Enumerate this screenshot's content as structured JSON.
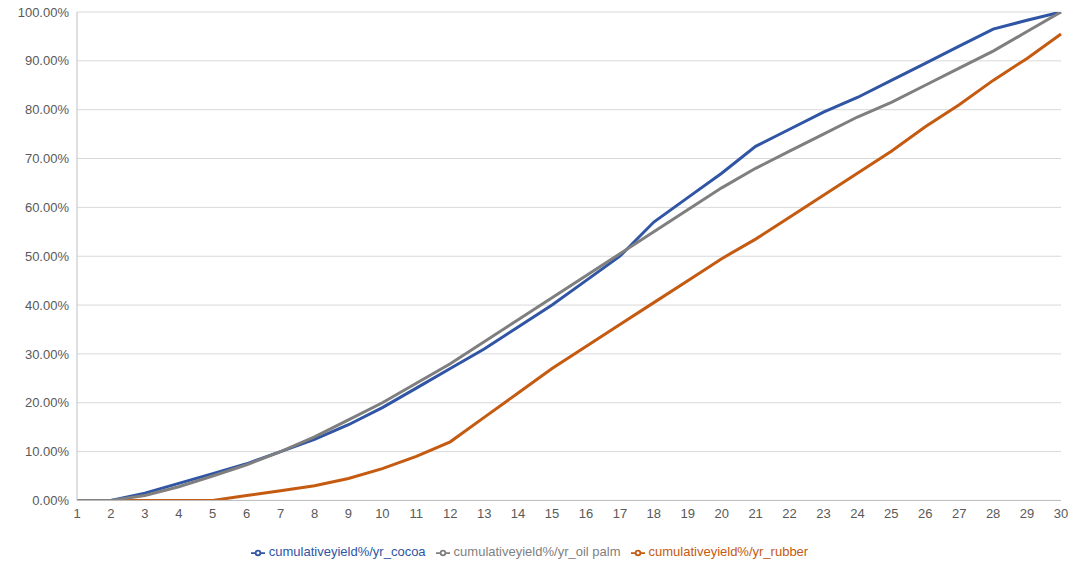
{
  "chart_data": {
    "type": "line",
    "categories": [
      "1",
      "2",
      "3",
      "4",
      "5",
      "6",
      "7",
      "8",
      "9",
      "10",
      "11",
      "12",
      "13",
      "14",
      "15",
      "16",
      "17",
      "18",
      "19",
      "20",
      "21",
      "22",
      "23",
      "24",
      "25",
      "26",
      "27",
      "28",
      "29",
      "30"
    ],
    "series": [
      {
        "name": "cumulativeyield%/yr_cocoa",
        "color": "#2f55a4",
        "values": [
          0,
          0,
          1.5,
          3.5,
          5.5,
          7.5,
          10,
          12.5,
          15.5,
          19,
          23,
          27,
          31,
          35.5,
          40,
          45,
          50,
          57,
          62,
          67,
          72.5,
          76,
          79.5,
          82.5,
          86,
          89.5,
          93,
          96.5,
          98.3,
          100
        ]
      },
      {
        "name": "cumulativeyield%/yr_rubber",
        "color": "#c55a11",
        "values": [
          0,
          0,
          0,
          0,
          0,
          1,
          2,
          3,
          4.5,
          6.5,
          9,
          12,
          17,
          22,
          27,
          31.5,
          36,
          40.5,
          45,
          49.5,
          53.5,
          58,
          62.5,
          67,
          71.5,
          76.5,
          81,
          86,
          90.5,
          95.5
        ]
      },
      {
        "name": "cumulativeyield%/yr_oil palm",
        "color": "#7f7f7f",
        "values": [
          0,
          0,
          1,
          2.8,
          5,
          7.3,
          10,
          13,
          16.5,
          20,
          24,
          28,
          32.5,
          37,
          41.5,
          46,
          50.5,
          55,
          59.5,
          64,
          68,
          71.5,
          75,
          78.5,
          81.5,
          85,
          88.5,
          92,
          96,
          100
        ]
      }
    ],
    "ylim": [
      0,
      100
    ],
    "yticks": [
      {
        "value": 0,
        "label": "0.00%"
      },
      {
        "value": 10,
        "label": "10.00%"
      },
      {
        "value": 20,
        "label": "20.00%"
      },
      {
        "value": 30,
        "label": "30.00%"
      },
      {
        "value": 40,
        "label": "40.00%"
      },
      {
        "value": 50,
        "label": "50.00%"
      },
      {
        "value": 60,
        "label": "60.00%"
      },
      {
        "value": 70,
        "label": "70.00%"
      },
      {
        "value": 80,
        "label": "80.00%"
      },
      {
        "value": 90,
        "label": "90.00%"
      },
      {
        "value": 100,
        "label": "100.00%"
      }
    ],
    "grid": true,
    "legend": "bottom"
  }
}
